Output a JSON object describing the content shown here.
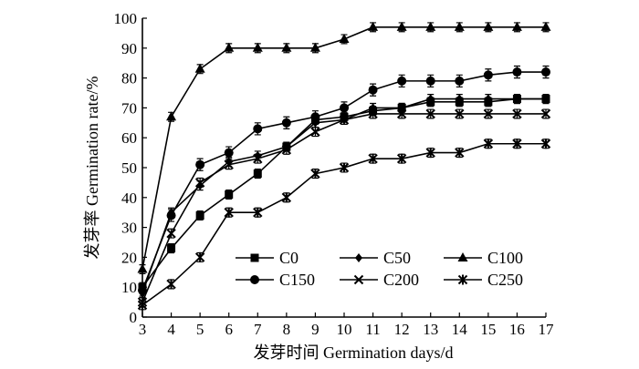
{
  "chart_data": {
    "type": "line",
    "xlabel": "发芽时间 Germination days/d",
    "ylabel": "发芽率 Germination rate/%",
    "xlim": [
      3,
      17
    ],
    "ylim": [
      0,
      100
    ],
    "x_ticks": [
      "3",
      "4",
      "5",
      "6",
      "7",
      "8",
      "9",
      "10",
      "11",
      "12",
      "13",
      "14",
      "15",
      "16",
      "17"
    ],
    "y_ticks": [
      "0",
      "10",
      "20",
      "30",
      "40",
      "50",
      "60",
      "70",
      "80",
      "90",
      "100"
    ],
    "grid": false,
    "legend_position": "bottom-right",
    "x": [
      3,
      4,
      5,
      6,
      7,
      8,
      9,
      10,
      11,
      12,
      13,
      14,
      15,
      16,
      17
    ],
    "series": [
      {
        "name": "C0",
        "marker": "square",
        "values": [
          10,
          23,
          34,
          41,
          48,
          57,
          66,
          67,
          69,
          70,
          72,
          72,
          72,
          73,
          73
        ],
        "error": 1.5
      },
      {
        "name": "C50",
        "marker": "diamond",
        "values": [
          8,
          35,
          44,
          52,
          54,
          57,
          65,
          66,
          70,
          70,
          73,
          73,
          73,
          73,
          73
        ],
        "error": 1.5
      },
      {
        "name": "C100",
        "marker": "triangle",
        "values": [
          16,
          67,
          83,
          90,
          90,
          90,
          90,
          93,
          97,
          97,
          97,
          97,
          97,
          97,
          97
        ],
        "error": 1.5
      },
      {
        "name": "C150",
        "marker": "circle",
        "values": [
          9,
          34,
          51,
          55,
          63,
          65,
          67,
          70,
          76,
          79,
          79,
          79,
          81,
          82,
          82
        ],
        "error": 2
      },
      {
        "name": "C200",
        "marker": "x",
        "values": [
          5,
          28,
          45,
          51,
          53,
          56,
          62,
          66,
          68,
          68,
          68,
          68,
          68,
          68,
          68
        ],
        "error": 1.5
      },
      {
        "name": "C250",
        "marker": "asterisk",
        "values": [
          4,
          11,
          20,
          35,
          35,
          40,
          48,
          50,
          53,
          53,
          55,
          55,
          58,
          58,
          58
        ],
        "error": 1.5
      }
    ]
  }
}
